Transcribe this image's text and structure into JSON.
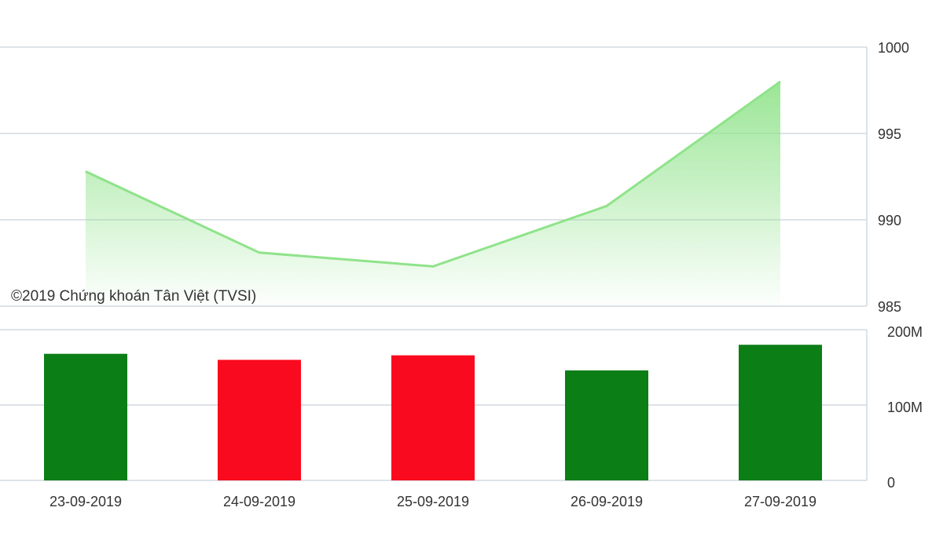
{
  "chart_data": [
    {
      "type": "area",
      "title": "",
      "xlabel": "",
      "ylabel": "",
      "x": [
        "23-09-2019",
        "24-09-2019",
        "25-09-2019",
        "26-09-2019",
        "27-09-2019"
      ],
      "values": [
        992.8,
        988.1,
        987.3,
        990.8,
        998.0
      ],
      "ylim": [
        985,
        1000
      ],
      "yticks": [
        "985",
        "990",
        "995",
        "1000"
      ],
      "grid": true,
      "axis_side": "right",
      "line_color": "#8fe38a",
      "fill_color": "#8fe38a",
      "watermark": "©2019 Chứng khoán Tân Việt (TVSI)"
    },
    {
      "type": "bar",
      "title": "",
      "xlabel": "",
      "ylabel": "",
      "categories": [
        "23-09-2019",
        "24-09-2019",
        "25-09-2019",
        "26-09-2019",
        "27-09-2019"
      ],
      "values": [
        168000000,
        160000000,
        166000000,
        146000000,
        180000000
      ],
      "colors": [
        "#0c7e16",
        "#fa0a1e",
        "#fa0a1e",
        "#0c7e16",
        "#0c7e16"
      ],
      "ylim": [
        0,
        200000000
      ],
      "yticks": [
        "0",
        "100M",
        "200M"
      ],
      "grid": true,
      "axis_side": "right"
    }
  ]
}
